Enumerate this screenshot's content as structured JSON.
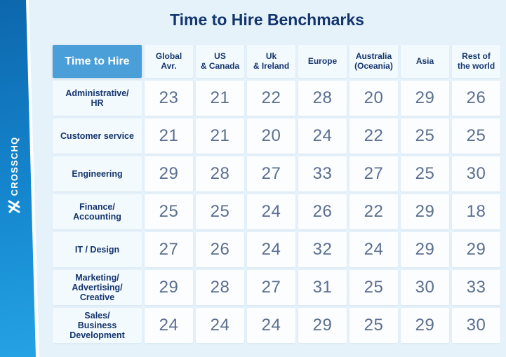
{
  "title": "Time to Hire Benchmarks",
  "brand": {
    "name": "CROSSCHQ",
    "logo": "crosschq-x-mark"
  },
  "colors": {
    "ribbon_top": "#0d67ad",
    "ribbon_bottom": "#25a3e4",
    "card_bg": "#e6f2fa",
    "corner_cell_bg": "#4b9fd8",
    "corner_cell_text": "#ffffff",
    "header_cell_bg": "#f3fafd",
    "navy_text": "#15356e",
    "value_cell_bg": "#fcfdff",
    "value_text": "#5b6f8e"
  },
  "table": {
    "corner_label": "Time to Hire",
    "columns": [
      "Global\nAvr.",
      "US\n& Canada",
      "Uk\n& Ireland",
      "Europe",
      "Australia\n(Oceania)",
      "Asia",
      "Rest of\nthe world"
    ],
    "rows": [
      {
        "label": "Administrative/\nHR",
        "values": [
          23,
          21,
          22,
          28,
          20,
          29,
          26
        ]
      },
      {
        "label": "Customer service",
        "values": [
          21,
          21,
          20,
          24,
          22,
          25,
          25
        ]
      },
      {
        "label": "Engineering",
        "values": [
          29,
          28,
          27,
          33,
          27,
          25,
          30
        ]
      },
      {
        "label": "Finance/\nAccounting",
        "values": [
          25,
          25,
          24,
          26,
          22,
          29,
          18
        ]
      },
      {
        "label": "IT / Design",
        "values": [
          27,
          26,
          24,
          32,
          24,
          29,
          29
        ]
      },
      {
        "label": "Marketing/\nAdvertising/\nCreative",
        "values": [
          29,
          28,
          27,
          31,
          25,
          30,
          33
        ]
      },
      {
        "label": "Sales/\nBusiness\nDevelopment",
        "values": [
          24,
          24,
          24,
          29,
          25,
          29,
          30
        ]
      }
    ]
  },
  "chart_data": {
    "type": "table",
    "title": "Time to Hire Benchmarks",
    "row_header": "Time to Hire",
    "categories": [
      "Global Avr.",
      "US & Canada",
      "Uk & Ireland",
      "Europe",
      "Australia (Oceania)",
      "Asia",
      "Rest of the world"
    ],
    "series": [
      {
        "name": "Administrative/HR",
        "values": [
          23,
          21,
          22,
          28,
          20,
          29,
          26
        ]
      },
      {
        "name": "Customer service",
        "values": [
          21,
          21,
          20,
          24,
          22,
          25,
          25
        ]
      },
      {
        "name": "Engineering",
        "values": [
          29,
          28,
          27,
          33,
          27,
          25,
          30
        ]
      },
      {
        "name": "Finance/Accounting",
        "values": [
          25,
          25,
          24,
          26,
          22,
          29,
          18
        ]
      },
      {
        "name": "IT / Design",
        "values": [
          27,
          26,
          24,
          32,
          24,
          29,
          29
        ]
      },
      {
        "name": "Marketing/Advertising/Creative",
        "values": [
          29,
          28,
          27,
          31,
          25,
          30,
          33
        ]
      },
      {
        "name": "Sales/Business Development",
        "values": [
          24,
          24,
          24,
          29,
          25,
          29,
          30
        ]
      }
    ]
  }
}
